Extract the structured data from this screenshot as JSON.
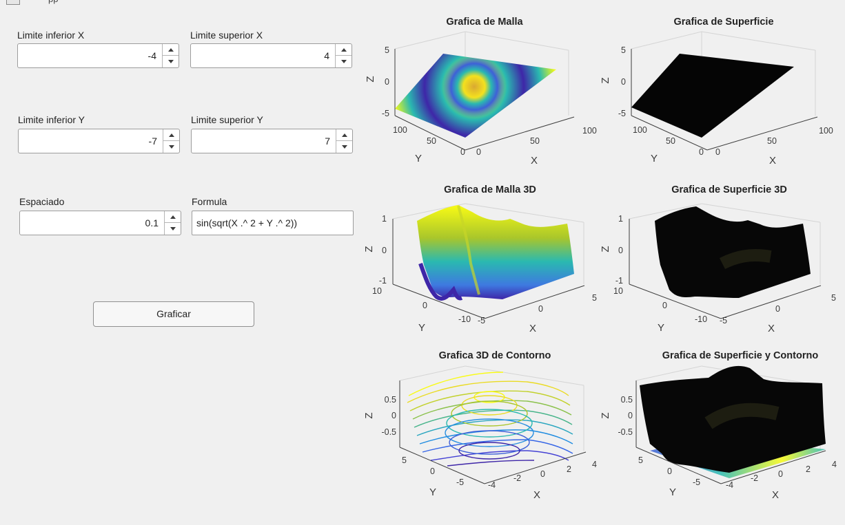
{
  "window": {
    "title_fragment": "pp"
  },
  "inputs": {
    "x_min": {
      "label": "Limite inferior X",
      "value": "-4"
    },
    "x_max": {
      "label": "Limite superior X",
      "value": "4"
    },
    "y_min": {
      "label": "Limite inferior Y",
      "value": "-7"
    },
    "y_max": {
      "label": "Limite superior Y",
      "value": "7"
    },
    "spacing": {
      "label": "Espaciado",
      "value": "0.1"
    },
    "formula": {
      "label": "Formula",
      "value": "sin(sqrt(X .^ 2 + Y .^ 2))"
    }
  },
  "plot_button": {
    "label": "Graficar"
  },
  "plots": [
    {
      "title": "Grafica de Malla",
      "xlabel": "X",
      "ylabel": "Y",
      "zlabel": "Z",
      "zticks": [
        "5",
        "0",
        "-5"
      ],
      "xticks": [
        "0",
        "50",
        "100"
      ],
      "yticks": [
        "100",
        "50",
        "0"
      ]
    },
    {
      "title": "Grafica de Superficie",
      "xlabel": "X",
      "ylabel": "Y",
      "zlabel": "Z",
      "zticks": [
        "5",
        "0",
        "-5"
      ],
      "xticks": [
        "0",
        "50",
        "100"
      ],
      "yticks": [
        "100",
        "50",
        "0"
      ]
    },
    {
      "title": "Grafica de Malla 3D",
      "xlabel": "X",
      "ylabel": "Y",
      "zlabel": "Z",
      "zticks": [
        "1",
        "0",
        "-1"
      ],
      "xticks": [
        "-5",
        "0",
        "5"
      ],
      "yticks": [
        "10",
        "0",
        "-10"
      ]
    },
    {
      "title": "Grafica de Superficie 3D",
      "xlabel": "X",
      "ylabel": "Y",
      "zlabel": "Z",
      "zticks": [
        "1",
        "0",
        "-1"
      ],
      "xticks": [
        "-5",
        "0",
        "5"
      ],
      "yticks": [
        "10",
        "0",
        "-10"
      ]
    },
    {
      "title": "Grafica 3D de Contorno",
      "xlabel": "X",
      "ylabel": "Y",
      "zlabel": "Z",
      "zticks": [
        "0.5",
        "0",
        "-0.5"
      ],
      "xticks": [
        "-4",
        "-2",
        "0",
        "2",
        "4"
      ],
      "yticks": [
        "5",
        "0",
        "-5"
      ]
    },
    {
      "title": "Grafica de Superficie y Contorno",
      "xlabel": "X",
      "ylabel": "Y",
      "zlabel": "Z",
      "zticks": [
        "0.5",
        "0",
        "-0.5"
      ],
      "xticks": [
        "-4",
        "-2",
        "0",
        "2",
        "4"
      ],
      "yticks": [
        "5",
        "0",
        "-5"
      ]
    }
  ],
  "colors": {
    "parula_blue": "#3e26a8",
    "parula_cyan": "#2ab9b0",
    "parula_yellow": "#f9fb15",
    "surface_dark": "#050505"
  }
}
